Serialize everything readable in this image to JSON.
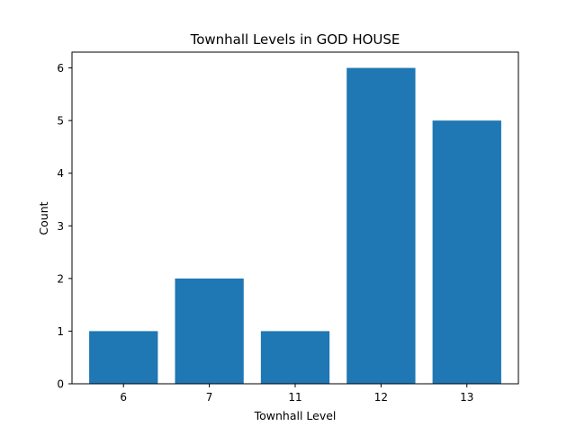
{
  "chart_data": {
    "type": "bar",
    "title": "Townhall Levels in GOD HOUSE",
    "xlabel": "Townhall Level",
    "ylabel": "Count",
    "categories": [
      "6",
      "7",
      "11",
      "12",
      "13"
    ],
    "values": [
      1,
      2,
      1,
      6,
      5
    ],
    "ylim": [
      0,
      6.3
    ],
    "yticks": [
      0,
      1,
      2,
      3,
      4,
      5,
      6
    ],
    "grid": false,
    "legend": "none",
    "bar_color": "#1f77b4"
  }
}
